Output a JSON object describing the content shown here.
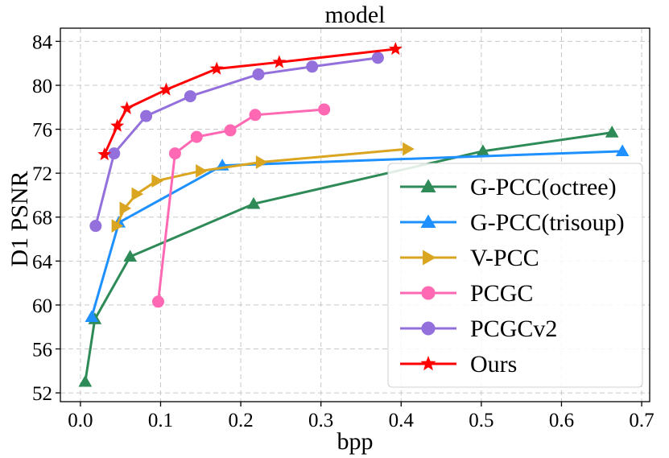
{
  "chart_data": {
    "type": "line",
    "title": "model",
    "xlabel": "bpp",
    "ylabel": "D1 PSNR",
    "xlim": [
      -0.025,
      0.71
    ],
    "ylim": [
      51.2,
      85.2
    ],
    "xticks": [
      0.0,
      0.1,
      0.2,
      0.3,
      0.4,
      0.5,
      0.6,
      0.7
    ],
    "xtick_labels": [
      "0.0",
      "0.1",
      "0.2",
      "0.3",
      "0.4",
      "0.5",
      "0.6",
      "0.7"
    ],
    "yticks": [
      52,
      56,
      60,
      64,
      68,
      72,
      76,
      80,
      84
    ],
    "ytick_labels": [
      "52",
      "56",
      "60",
      "64",
      "68",
      "72",
      "76",
      "80",
      "84"
    ],
    "grid": true,
    "legend_position": "lower-right",
    "series": [
      {
        "name": "G-PCC(octree)",
        "color": "#2e8b57",
        "marker": "triangle-up",
        "x": [
          0.006,
          0.018,
          0.062,
          0.216,
          0.502,
          0.663
        ],
        "y": [
          53.0,
          58.7,
          64.4,
          69.2,
          74.0,
          75.7
        ]
      },
      {
        "name": "G-PCC(trisoup)",
        "color": "#1e90ff",
        "marker": "triangle-up",
        "x": [
          0.014,
          0.048,
          0.177,
          0.676
        ],
        "y": [
          58.9,
          67.5,
          72.7,
          74.0
        ]
      },
      {
        "name": "V-PCC",
        "color": "#daa520",
        "marker": "triangle-right",
        "x": [
          0.045,
          0.055,
          0.07,
          0.095,
          0.15,
          0.225,
          0.408
        ],
        "y": [
          67.2,
          68.8,
          70.1,
          71.3,
          72.2,
          73.0,
          74.2
        ]
      },
      {
        "name": "PCGC",
        "color": "#ff69b4",
        "marker": "circle",
        "x": [
          0.097,
          0.118,
          0.145,
          0.187,
          0.218,
          0.304
        ],
        "y": [
          60.3,
          73.8,
          75.3,
          75.9,
          77.3,
          77.8
        ]
      },
      {
        "name": "PCGCv2",
        "color": "#9370db",
        "marker": "circle",
        "x": [
          0.019,
          0.042,
          0.082,
          0.137,
          0.222,
          0.289,
          0.371
        ],
        "y": [
          67.2,
          73.8,
          77.2,
          79.0,
          81.0,
          81.7,
          82.5
        ]
      },
      {
        "name": "Ours",
        "color": "#ff0000",
        "marker": "star",
        "x": [
          0.03,
          0.046,
          0.058,
          0.107,
          0.17,
          0.248,
          0.393
        ],
        "y": [
          73.7,
          76.3,
          77.9,
          79.6,
          81.5,
          82.1,
          83.3
        ]
      }
    ]
  }
}
